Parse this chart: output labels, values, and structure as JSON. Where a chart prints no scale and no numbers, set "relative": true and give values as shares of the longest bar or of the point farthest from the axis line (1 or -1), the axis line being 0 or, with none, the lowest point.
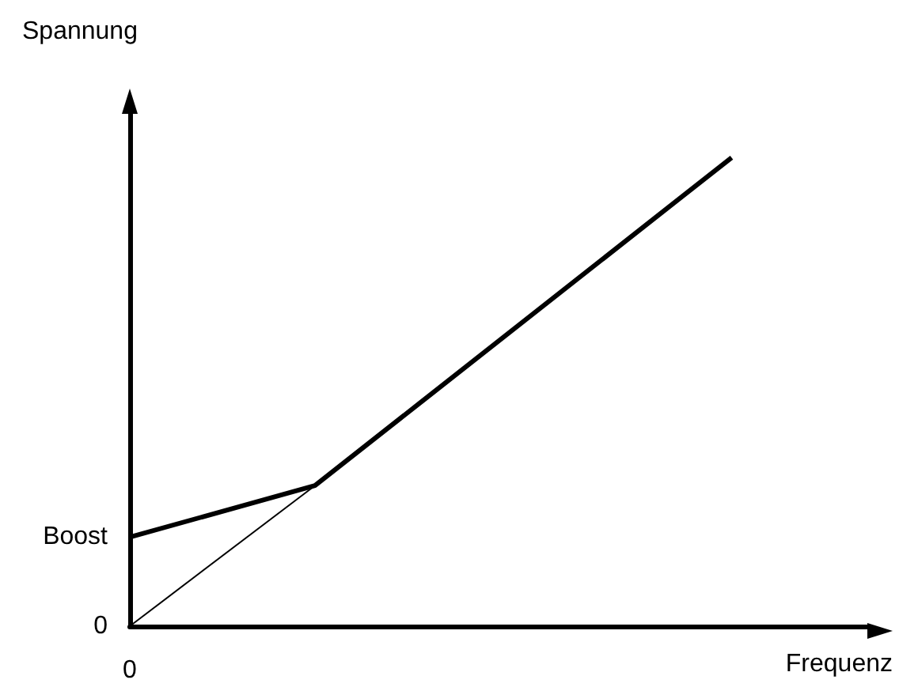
{
  "chart_data": {
    "type": "line",
    "relative": true,
    "xlabel": "Frequenz",
    "ylabel": "Spannung",
    "marker": "none",
    "categories": [
      null,
      null,
      null,
      null,
      null,
      null,
      null,
      null,
      null,
      null,
      null,
      null,
      null,
      null,
      null,
      null,
      null
    ],
    "series": [
      {
        "color": "#000000",
        "values": [
          0.19,
          null,
          null,
          null,
          0.3,
          null,
          null,
          null,
          null,
          null,
          null,
          null,
          null,
          1,
          null,
          null,
          null
        ]
      },
      {
        "color": "#000000",
        "values": [
          0,
          null,
          null,
          null,
          0.3,
          null,
          null,
          null,
          null,
          null,
          null,
          null,
          null,
          null,
          null,
          null,
          null
        ]
      }
    ],
    "annotations": [
      "0",
      "Boost",
      "0"
    ]
  }
}
